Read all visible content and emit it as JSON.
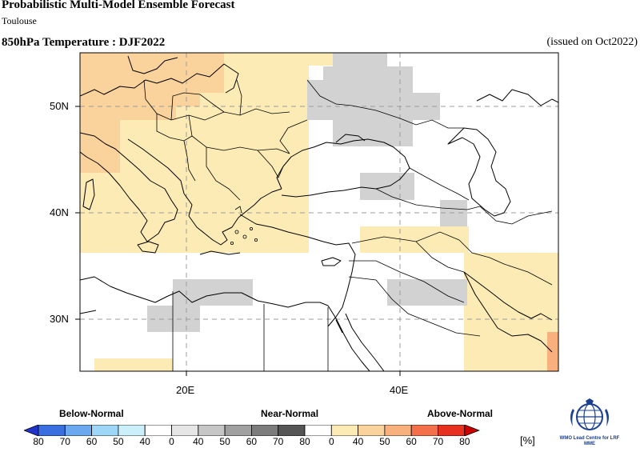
{
  "header": {
    "title": "Probabilistic Multi-Model Ensemble Forecast",
    "subtitle": "Toulouse",
    "variable": "850hPa Temperature : DJF2022",
    "issued": "(issued on Oct2022)"
  },
  "map": {
    "lon_range": [
      10,
      55
    ],
    "lat_range": [
      25,
      55
    ],
    "lat_labels": [
      "50N",
      "40N",
      "30N"
    ],
    "lon_labels": [
      "20E",
      "40E"
    ],
    "gridlines": "dashed",
    "colors": {
      "above_light": "#fcebb5",
      "above_medium": "#f9d29c",
      "above_strong": "#f8b07c",
      "near_normal": "#d2d2d2",
      "land_outline": "#000000"
    },
    "regions": [
      {
        "category": "Above-Normal",
        "level": "40-50",
        "area": "Central Europe and Balkans"
      },
      {
        "category": "Above-Normal",
        "level": "50-60",
        "area": "Western Europe / Baltic"
      },
      {
        "category": "Near-Normal",
        "level": "40-50",
        "area": "Ukraine and western Russia"
      },
      {
        "category": "Near-Normal",
        "level": "40-50",
        "area": "Libya"
      },
      {
        "category": "Near-Normal",
        "level": "40-50",
        "area": "Iraq"
      },
      {
        "category": "Above-Normal",
        "level": "40-50",
        "area": "Arabian Gulf"
      }
    ]
  },
  "legend": {
    "categories": [
      "Below-Normal",
      "Near-Normal",
      "Above-Normal"
    ],
    "ticks": [
      "80",
      "70",
      "60",
      "50",
      "40",
      "0",
      "40",
      "50",
      "60",
      "70",
      "80",
      "0",
      "40",
      "50",
      "60",
      "70",
      "80"
    ],
    "unit": "[%]",
    "colors": [
      "#2233cc",
      "#3a6fe0",
      "#6aa9f0",
      "#9dd6f6",
      "#ccf0fb",
      "#ffffff",
      "#e6e6e6",
      "#c6c6c6",
      "#a0a0a0",
      "#7c7c7c",
      "#555555",
      "#ffffff",
      "#fcebb5",
      "#f9d29c",
      "#f8b07c",
      "#f4704a",
      "#e83020",
      "#cc0000"
    ]
  },
  "logo": {
    "text": "WMO Lead Centre for LRF MME"
  }
}
